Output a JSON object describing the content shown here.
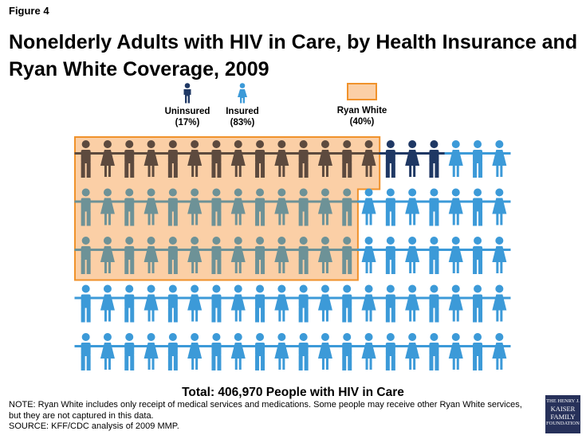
{
  "figure_label": "Figure 4",
  "chart_data": {
    "type": "pictograph",
    "title": "Nonelderly Adults with HIV in Care, by Health Insurance and Ryan White Coverage, 2009",
    "total_label": "Total: 406,970 People with HIV in Care",
    "grid": {
      "rows": 5,
      "columns": 20,
      "total_icons": 100
    },
    "categories": [
      {
        "name": "Uninsured",
        "percent_label": "(17%)",
        "value": 17,
        "color": "#1f3864"
      },
      {
        "name": "Insured",
        "percent_label": "(83%)",
        "value": 83,
        "color": "#3c9ad8"
      }
    ],
    "overlay": {
      "name": "Ryan White",
      "percent_label": "(40%)",
      "value": 40,
      "fill": "#fbcfa6",
      "border": "#f0922b"
    },
    "colors": {
      "uninsured": "#1f3864",
      "insured": "#3c9ad8",
      "uninsured_ryan_white": "#5d4a3e",
      "insured_ryan_white": "#6d9297"
    }
  },
  "notes": {
    "line1": "NOTE: Ryan White includes only receipt of medical services and medications. Some people may receive other Ryan White services,",
    "line2": "but they are not captured in this data.",
    "line3": "SOURCE: KFF/CDC analysis of 2009 MMP."
  },
  "logo": {
    "line1": "THE HENRY J.",
    "line2": "KAISER",
    "line3": "FAMILY",
    "line4": "FOUNDATION"
  }
}
